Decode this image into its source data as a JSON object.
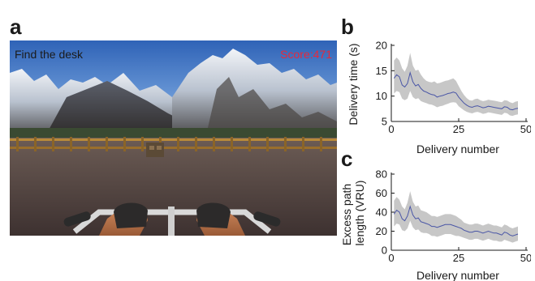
{
  "panels": {
    "a": "a",
    "b": "b",
    "c": "c"
  },
  "game": {
    "task_text": "Find the desk",
    "score_text": "Score:471",
    "colors": {
      "score": "#e8283a",
      "sky": "#3f73c4",
      "ground": "#5a4a48"
    }
  },
  "chart_data": [
    {
      "type": "line",
      "panel": "b",
      "xlabel": "Delivery number",
      "ylabel": "Delivery time (s)",
      "xlim": [
        0,
        50
      ],
      "ylim": [
        5,
        20
      ],
      "xticks": [
        0,
        25,
        50
      ],
      "yticks": [
        5,
        10,
        15,
        20
      ],
      "grid": false,
      "series": [
        {
          "x": [
            1,
            2,
            3,
            4,
            5,
            6,
            7,
            8,
            9,
            10,
            11,
            12,
            13,
            14,
            15,
            16,
            17,
            18,
            19,
            20,
            21,
            22,
            23,
            24,
            25,
            26,
            27,
            28,
            29,
            30,
            31,
            32,
            33,
            34,
            35,
            36,
            37,
            38,
            39,
            40,
            41,
            42,
            43,
            44,
            45,
            46,
            47
          ],
          "mean": [
            13.5,
            14.2,
            13.8,
            12.2,
            11.8,
            12.5,
            14.6,
            12.8,
            12.0,
            12.3,
            11.5,
            11.0,
            10.8,
            10.5,
            10.3,
            10.2,
            9.8,
            10.0,
            10.1,
            10.3,
            10.5,
            10.6,
            10.8,
            10.6,
            9.8,
            9.2,
            8.6,
            8.2,
            7.9,
            7.8,
            8.0,
            8.1,
            7.9,
            7.7,
            7.8,
            8.0,
            7.9,
            7.8,
            7.7,
            7.6,
            7.5,
            7.9,
            7.8,
            7.4,
            7.3,
            7.5,
            7.6
          ],
          "upper": [
            17.0,
            17.6,
            17.0,
            15.5,
            14.8,
            16.0,
            18.5,
            16.0,
            15.0,
            15.2,
            14.2,
            13.5,
            13.0,
            12.8,
            12.7,
            12.9,
            12.5,
            12.6,
            12.8,
            13.0,
            13.1,
            13.3,
            13.5,
            13.0,
            12.0,
            11.0,
            10.2,
            9.6,
            9.2,
            9.1,
            9.4,
            9.5,
            9.2,
            9.0,
            9.1,
            9.3,
            9.2,
            9.1,
            9.0,
            8.9,
            8.8,
            9.2,
            9.1,
            8.8,
            8.6,
            8.9,
            9.0
          ],
          "lower": [
            10.5,
            11.0,
            10.8,
            9.5,
            9.2,
            9.5,
            11.0,
            9.8,
            9.4,
            9.6,
            9.0,
            8.8,
            8.6,
            8.4,
            8.3,
            8.1,
            7.8,
            8.0,
            8.1,
            8.3,
            8.5,
            8.7,
            8.8,
            8.7,
            8.0,
            7.6,
            7.2,
            6.9,
            6.7,
            6.6,
            6.8,
            6.9,
            6.7,
            6.5,
            6.6,
            6.8,
            6.7,
            6.6,
            6.5,
            6.4,
            6.3,
            6.7,
            6.6,
            6.2,
            6.1,
            6.3,
            6.4
          ],
          "line_color": "#4a56a6",
          "band_color": "#c7c7c7"
        }
      ]
    },
    {
      "type": "line",
      "panel": "c",
      "xlabel": "Delivery number",
      "ylabel": "Excess path length (VRU)",
      "ylabel_lines": [
        "Excess path",
        "length (VRU)"
      ],
      "xlim": [
        0,
        50
      ],
      "ylim": [
        0,
        80
      ],
      "xticks": [
        0,
        25,
        50
      ],
      "yticks": [
        0,
        20,
        40,
        60,
        80
      ],
      "grid": false,
      "series": [
        {
          "x": [
            1,
            2,
            3,
            4,
            5,
            6,
            7,
            8,
            9,
            10,
            11,
            12,
            13,
            14,
            15,
            16,
            17,
            18,
            19,
            20,
            21,
            22,
            23,
            24,
            25,
            26,
            27,
            28,
            29,
            30,
            31,
            32,
            33,
            34,
            35,
            36,
            37,
            38,
            39,
            40,
            41,
            42,
            43,
            44,
            45,
            46,
            47
          ],
          "mean": [
            38,
            42,
            40,
            33,
            31,
            36,
            46,
            37,
            33,
            34,
            30,
            29,
            28,
            27,
            25,
            25,
            24,
            25,
            26,
            27,
            27,
            27,
            26,
            25,
            24,
            23,
            21,
            20,
            19,
            19,
            20,
            20,
            19,
            18,
            19,
            20,
            19,
            18,
            18,
            17,
            16,
            19,
            18,
            16,
            15,
            16,
            17
          ],
          "upper": [
            52,
            56,
            53,
            46,
            43,
            50,
            62,
            51,
            46,
            47,
            42,
            41,
            40,
            38,
            36,
            36,
            35,
            36,
            37,
            38,
            38,
            38,
            37,
            36,
            34,
            32,
            29,
            28,
            27,
            27,
            28,
            28,
            27,
            26,
            27,
            28,
            27,
            26,
            26,
            25,
            24,
            27,
            26,
            24,
            23,
            24,
            25
          ],
          "lower": [
            25,
            28,
            27,
            21,
            20,
            23,
            31,
            24,
            21,
            22,
            19,
            18,
            18,
            17,
            15,
            15,
            14,
            15,
            16,
            17,
            17,
            17,
            16,
            15,
            15,
            14,
            13,
            12,
            11,
            11,
            12,
            12,
            11,
            10,
            11,
            12,
            11,
            10,
            10,
            9,
            9,
            11,
            10,
            9,
            8,
            9,
            10
          ],
          "line_color": "#4a56a6",
          "band_color": "#c7c7c7"
        }
      ]
    }
  ]
}
